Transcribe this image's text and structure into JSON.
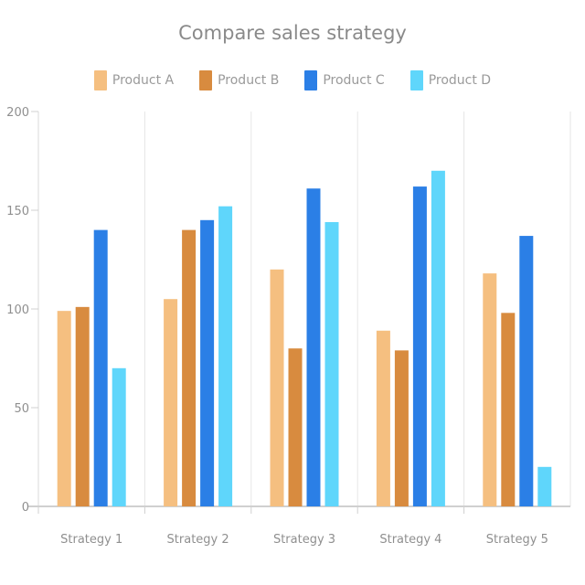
{
  "chart_data": {
    "type": "bar",
    "title": "Compare sales strategy",
    "xlabel": "",
    "ylabel": "",
    "categories": [
      "Strategy 1",
      "Strategy 2",
      "Strategy 3",
      "Strategy 4",
      "Strategy 5"
    ],
    "series": [
      {
        "name": "Product A",
        "color": "#f5bf80",
        "values": [
          99,
          105,
          120,
          89,
          118
        ]
      },
      {
        "name": "Product B",
        "color": "#d88b3f",
        "values": [
          101,
          140,
          80,
          79,
          98
        ]
      },
      {
        "name": "Product C",
        "color": "#2b7fe6",
        "values": [
          140,
          145,
          161,
          162,
          137
        ]
      },
      {
        "name": "Product D",
        "color": "#5fd6fb",
        "values": [
          70,
          152,
          144,
          170,
          20
        ]
      }
    ],
    "ylim": [
      0,
      200
    ],
    "yticks": [
      0,
      50,
      100,
      150,
      200
    ],
    "grid": "vertical",
    "legend_position": "top"
  }
}
